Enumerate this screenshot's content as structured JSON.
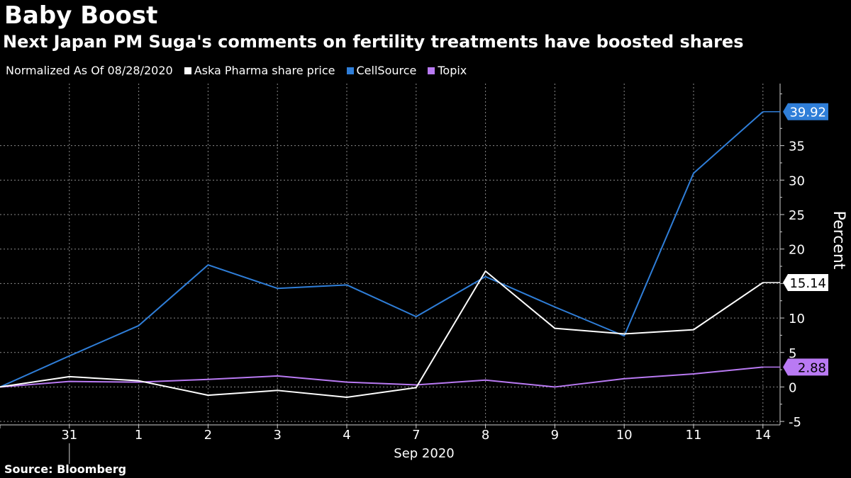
{
  "title": "Baby Boost",
  "subtitle": "Next Japan PM Suga's comments on fertility treatments have boosted shares",
  "legend": {
    "note": "Normalized As Of 08/28/2020",
    "items": [
      {
        "label": "Aska Pharma share price",
        "color": "#ffffff"
      },
      {
        "label": "CellSource",
        "color": "#2f7ed8"
      },
      {
        "label": "Topix",
        "color": "#b97af3"
      }
    ]
  },
  "source": "Source: Bloomberg",
  "chart_data": {
    "type": "line",
    "x": [
      "28",
      "31",
      "1",
      "2",
      "3",
      "4",
      "7",
      "8",
      "9",
      "10",
      "11",
      "14"
    ],
    "x_tick_labels": [
      "31",
      "1",
      "2",
      "3",
      "4",
      "7",
      "8",
      "9",
      "10",
      "11",
      "14"
    ],
    "xlabel": "Sep 2020",
    "ylabel": "Percent",
    "ylim": [
      -5.5,
      44
    ],
    "yticks": [
      -5,
      0,
      5,
      10,
      15,
      20,
      25,
      30,
      35
    ],
    "grid": true,
    "series": [
      {
        "name": "Aska Pharma share price",
        "color": "#ffffff",
        "values": [
          0,
          1.5,
          0.9,
          -1.2,
          -0.5,
          -1.5,
          -0.1,
          16.8,
          8.5,
          7.7,
          8.3,
          15.14
        ],
        "end_label": "15.14",
        "end_label_bg": "#ffffff",
        "end_label_fg": "#000000"
      },
      {
        "name": "CellSource",
        "color": "#2f7ed8",
        "values": [
          0,
          4.5,
          8.9,
          17.7,
          14.3,
          14.8,
          10.2,
          16.0,
          11.6,
          7.4,
          31.0,
          39.92
        ],
        "end_label": "39.92",
        "end_label_bg": "#2f7ed8",
        "end_label_fg": "#ffffff"
      },
      {
        "name": "Topix",
        "color": "#b97af3",
        "values": [
          0,
          0.8,
          0.7,
          1.1,
          1.6,
          0.7,
          0.3,
          1.0,
          0.0,
          1.2,
          1.9,
          2.88
        ],
        "end_label": "2.88",
        "end_label_bg": "#b97af3",
        "end_label_fg": "#000000"
      }
    ]
  }
}
